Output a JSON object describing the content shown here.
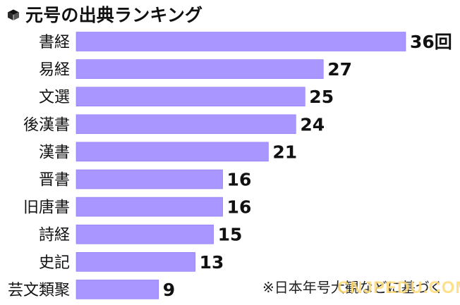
{
  "header": {
    "title": "元号の出典ランキング",
    "icon": "cube-icon"
  },
  "footnote": "※日本年号大観などに基づく",
  "watermark": "CNJPEDU.COM",
  "colors": {
    "bar": "#a996ff",
    "bar_edge": "#8c74f5",
    "text": "#111111",
    "background": "#ffffff"
  },
  "chart_data": {
    "type": "bar",
    "orientation": "horizontal",
    "title": "元号の出典ランキング",
    "categories": [
      "書経",
      "易経",
      "文選",
      "後漢書",
      "漢書",
      "晋書",
      "旧唐書",
      "詩経",
      "史記",
      "芸文類聚"
    ],
    "values": [
      36,
      27,
      25,
      24,
      21,
      16,
      16,
      15,
      13,
      9
    ],
    "value_labels": [
      "36回",
      "27",
      "25",
      "24",
      "21",
      "16",
      "16",
      "15",
      "13",
      "9"
    ],
    "xlim": [
      0,
      36
    ],
    "xlabel": "",
    "ylabel": "",
    "grid": false,
    "legend": "none"
  }
}
